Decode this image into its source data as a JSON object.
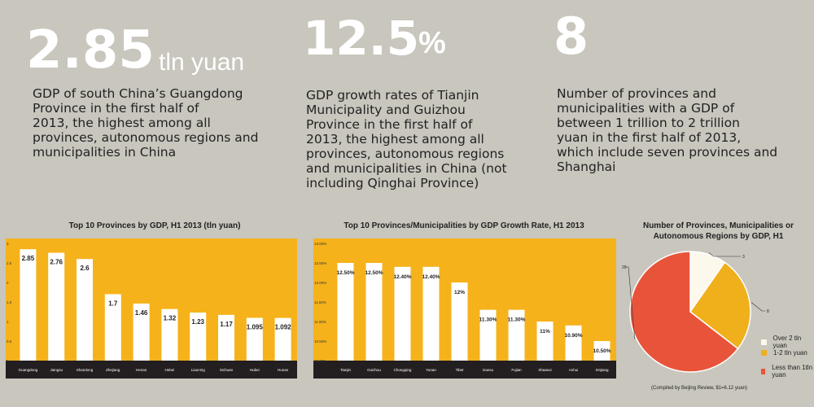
{
  "stats": [
    {
      "value": "2.85",
      "unit": "tln yuan",
      "description_lines": [
        "GDP of south China’s Guangdong",
        "Province in the first half of",
        "2013, the highest among all",
        "provinces, autonomous regions and",
        "municipalities in China"
      ]
    },
    {
      "value": "12.5",
      "unit": "%",
      "description_lines": [
        "GDP growth rates of Tianjin",
        "Municipality and Guizhou",
        "Province in the first half of",
        "2013, the highest among all",
        "provinces, autonomous regions",
        "and municipalities in China (not",
        "including Qinghai Province)"
      ]
    },
    {
      "value": "8",
      "unit": "",
      "description_lines": [
        "Number of provinces and",
        "municipalities with a GDP of",
        "between 1 trillion to 2 trillion",
        "yuan in the first half of 2013,",
        "which include seven provinces and",
        "Shanghai"
      ]
    }
  ],
  "colors": {
    "background": "#c8c6bd",
    "plot_bg": "#f5b21a",
    "axis_band": "#231f20",
    "bar": "#ffffff",
    "pie_white": "#fdf8ec",
    "pie_yellow": "#f0b01c",
    "pie_red": "#e8543a"
  },
  "chart_data": [
    {
      "type": "bar",
      "title": "Top 10 Provinces by GDP, H1 2013 (tln yuan)",
      "categories": [
        "Guangdong",
        "Jiangsu",
        "Shandong",
        "Zhejiang",
        "Henan",
        "Hebei",
        "Liaoning",
        "Sichuan",
        "Hubei",
        "Hunan"
      ],
      "values": [
        2.85,
        2.76,
        2.6,
        1.7,
        1.46,
        1.32,
        1.23,
        1.17,
        1.095,
        1.092
      ],
      "data_labels": [
        "2.85",
        "2.76",
        "2.6",
        "1.7",
        "1.46",
        "1.32",
        "1.23",
        "1.17",
        "1.095",
        "1.092"
      ],
      "yticks": [
        "0",
        "0.5",
        "1",
        "1.5",
        "2",
        "2.5",
        "3"
      ],
      "ylim": [
        0,
        3
      ]
    },
    {
      "type": "bar",
      "title": "Top 10 Provinces/Municipalities by GDP Growth Rate, H1 2013",
      "categories": [
        "Tianjin",
        "Guizhou",
        "Chongqing",
        "Yunan",
        "Tibet",
        "Gansu",
        "Fujian",
        "Shaanxi",
        "Anhui",
        "Xinjiang"
      ],
      "values": [
        12.5,
        12.5,
        12.4,
        12.4,
        12,
        11.3,
        11.3,
        11,
        10.9,
        10.5
      ],
      "data_labels": [
        "12.50%",
        "12.50%",
        "12.40%",
        "12.40%",
        "12%",
        "11.30%",
        "11.30%",
        "11%",
        "10.90%",
        "10.50%"
      ],
      "yticks": [
        "10.00%",
        "10.50%",
        "11.00%",
        "11.50%",
        "12.00%",
        "12.50%",
        "13.00%"
      ],
      "ylim": [
        10,
        13
      ]
    },
    {
      "type": "pie",
      "title": "Number of Provinces, Municipalities or Autonomous Regions by GDP, H1",
      "labels": [
        "Over 2 tln yuan",
        "1-2 tln yuan",
        "Less than 1tln yuan"
      ],
      "values": [
        3,
        8,
        20
      ],
      "value_labels": [
        "3",
        "8",
        "20"
      ],
      "footnote": "(Compiled by Beijing Review, $1=6.12 yuan)"
    }
  ]
}
